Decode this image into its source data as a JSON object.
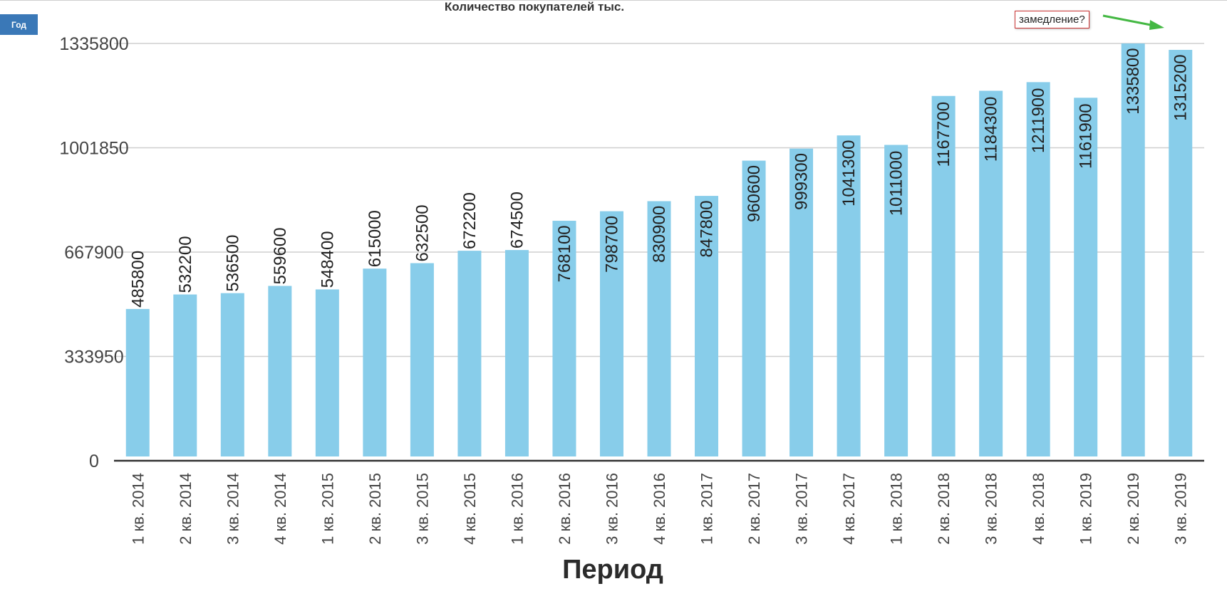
{
  "ui": {
    "period_button": "Год",
    "annotation": "замедление?"
  },
  "colors": {
    "bar": "#88cdea",
    "grid": "#cfcfcf",
    "axis": "#333333",
    "annotation_border": "#cc3333",
    "arrow": "#44b843",
    "button": "#3a78b7"
  },
  "chart_data": {
    "type": "bar",
    "title": "Количество покупателей тыс.",
    "xlabel": "Период",
    "ylabel": "",
    "ylim": [
      0,
      1335800
    ],
    "yticks": [
      "0",
      "333950",
      "667900",
      "1001850",
      "1335800"
    ],
    "grid": true,
    "categories": [
      "1 кв. 2014",
      "2 кв. 2014",
      "3 кв. 2014",
      "4 кв. 2014",
      "1 кв. 2015",
      "2 кв. 2015",
      "3 кв. 2015",
      "4 кв. 2015",
      "1 кв. 2016",
      "2 кв. 2016",
      "3 кв. 2016",
      "4 кв. 2016",
      "1 кв. 2017",
      "2 кв. 2017",
      "3 кв. 2017",
      "4 кв. 2017",
      "1 кв. 2018",
      "2 кв. 2018",
      "3 кв. 2018",
      "4 кв. 2018",
      "1 кв. 2019",
      "2 кв. 2019",
      "3 кв. 2019"
    ],
    "values": [
      485800,
      532200,
      536500,
      559600,
      548400,
      615000,
      632500,
      672200,
      674500,
      768100,
      798700,
      830900,
      847800,
      960600,
      999300,
      1041300,
      1011000,
      1167700,
      1184300,
      1211900,
      1161900,
      1335800,
      1315200
    ]
  }
}
